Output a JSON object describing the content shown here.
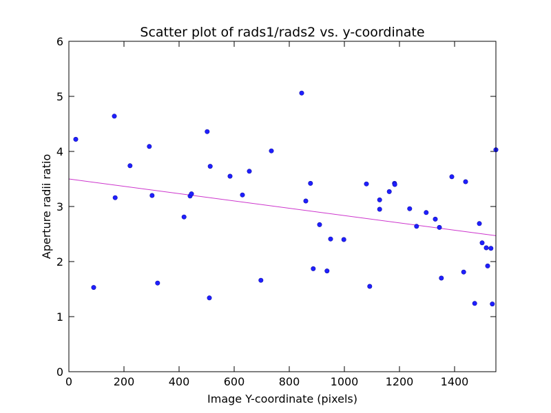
{
  "chart_data": {
    "type": "scatter",
    "title": "Scatter plot of rads1/rads2 vs. y-coordinate",
    "xlabel": "Image Y-coordinate (pixels)",
    "ylabel": "Aperture radii ratio",
    "xlim": [
      0,
      1550
    ],
    "ylim": [
      0,
      6
    ],
    "xticks": [
      0,
      200,
      400,
      600,
      800,
      1000,
      1200,
      1400
    ],
    "xtick_labels": [
      "0",
      "200",
      "400",
      "600",
      "800",
      "1000",
      "1200",
      "1400"
    ],
    "yticks": [
      0,
      1,
      2,
      3,
      4,
      5,
      6
    ],
    "ytick_labels": [
      "0",
      "1",
      "2",
      "3",
      "4",
      "5",
      "6"
    ],
    "grid": false,
    "legend": "none",
    "marker_color": "#1f1fff",
    "fit_line_color": "#cc33cc",
    "points": [
      [
        25,
        4.22
      ],
      [
        90,
        1.53
      ],
      [
        165,
        4.64
      ],
      [
        168,
        3.16
      ],
      [
        222,
        3.74
      ],
      [
        292,
        4.09
      ],
      [
        302,
        3.2
      ],
      [
        322,
        1.61
      ],
      [
        418,
        2.81
      ],
      [
        440,
        3.19
      ],
      [
        445,
        3.23
      ],
      [
        502,
        4.36
      ],
      [
        510,
        1.34
      ],
      [
        513,
        3.73
      ],
      [
        585,
        3.55
      ],
      [
        630,
        3.21
      ],
      [
        655,
        3.64
      ],
      [
        697,
        1.66
      ],
      [
        735,
        4.01
      ],
      [
        845,
        5.06
      ],
      [
        860,
        3.1
      ],
      [
        877,
        3.42
      ],
      [
        887,
        1.87
      ],
      [
        910,
        2.67
      ],
      [
        937,
        1.83
      ],
      [
        950,
        2.41
      ],
      [
        998,
        2.4
      ],
      [
        1080,
        3.41
      ],
      [
        1092,
        1.55
      ],
      [
        1128,
        2.95
      ],
      [
        1128,
        3.12
      ],
      [
        1163,
        3.27
      ],
      [
        1182,
        3.42
      ],
      [
        1183,
        3.4
      ],
      [
        1237,
        2.96
      ],
      [
        1262,
        2.64
      ],
      [
        1297,
        2.89
      ],
      [
        1330,
        2.77
      ],
      [
        1345,
        2.62
      ],
      [
        1352,
        1.7
      ],
      [
        1390,
        3.54
      ],
      [
        1433,
        1.81
      ],
      [
        1440,
        3.45
      ],
      [
        1473,
        1.24
      ],
      [
        1490,
        2.69
      ],
      [
        1500,
        2.34
      ],
      [
        1515,
        2.25
      ],
      [
        1520,
        1.92
      ],
      [
        1532,
        2.24
      ],
      [
        1537,
        1.23
      ],
      [
        1550,
        4.03
      ]
    ],
    "fit_line": {
      "x": [
        0,
        1550
      ],
      "y": [
        3.5,
        2.47
      ]
    }
  }
}
